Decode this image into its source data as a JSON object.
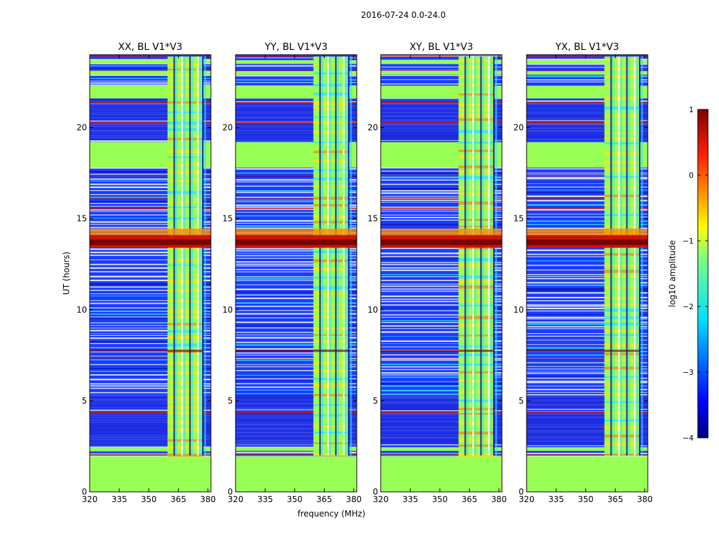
{
  "figure_title": "2016-07-24 0.0-24.0",
  "colors": {
    "bg": "#ffffff",
    "axis": "#000000",
    "band_fill": "#99ff55",
    "noise_blue": "#1a3dff",
    "deep_blue": "#0a14b0",
    "red": "#cc1400",
    "dark_red": "#7a0000",
    "orange": "#ff8a00",
    "yellow": "#ffe600",
    "cyan": "#33e0ff"
  },
  "chart_data": [
    {
      "type": "heatmap",
      "title": "XX, BL V1*V3",
      "xlabel": "",
      "ylabel": "UT (hours)",
      "xlim": [
        320,
        381.5
      ],
      "ylim": [
        0,
        24
      ],
      "xticks": [
        320,
        335,
        350,
        365,
        380
      ],
      "yticks": [
        0,
        5,
        10,
        15,
        20
      ],
      "rfi_band_mhz": [
        359.5,
        377.5
      ],
      "strong_rfi_ut_hours": [
        13.4,
        14.1
      ]
    },
    {
      "type": "heatmap",
      "title": "YY, BL V1*V3",
      "xlabel": "frequency (MHz)",
      "ylabel": "",
      "xlim": [
        320,
        381.5
      ],
      "ylim": [
        0,
        24
      ],
      "xticks": [
        320,
        335,
        350,
        365,
        380
      ],
      "yticks": [
        0,
        5,
        10,
        15,
        20
      ],
      "rfi_band_mhz": [
        359.5,
        377.5
      ],
      "strong_rfi_ut_hours": [
        13.4,
        14.1
      ]
    },
    {
      "type": "heatmap",
      "title": "XY, BL V1*V3",
      "xlabel": "",
      "ylabel": "",
      "xlim": [
        320,
        381.5
      ],
      "ylim": [
        0,
        24
      ],
      "xticks": [
        320,
        335,
        350,
        365,
        380
      ],
      "yticks": [
        0,
        5,
        10,
        15,
        20
      ],
      "rfi_band_mhz": [
        359.5,
        377.5
      ],
      "strong_rfi_ut_hours": [
        13.4,
        14.1
      ]
    },
    {
      "type": "heatmap",
      "title": "YX, BL V1*V3",
      "xlabel": "",
      "ylabel": "",
      "xlim": [
        320,
        381.5
      ],
      "ylim": [
        0,
        24
      ],
      "xticks": [
        320,
        335,
        350,
        365,
        380
      ],
      "yticks": [
        0,
        5,
        10,
        15,
        20
      ],
      "rfi_band_mhz": [
        359.5,
        377.5
      ],
      "strong_rfi_ut_hours": [
        13.4,
        14.1
      ]
    }
  ],
  "colorbar": {
    "label": "log10 amplitude",
    "ticks": [
      "1",
      "0",
      "−1",
      "−2",
      "−3",
      "−4"
    ],
    "range": [
      -4,
      1
    ]
  }
}
